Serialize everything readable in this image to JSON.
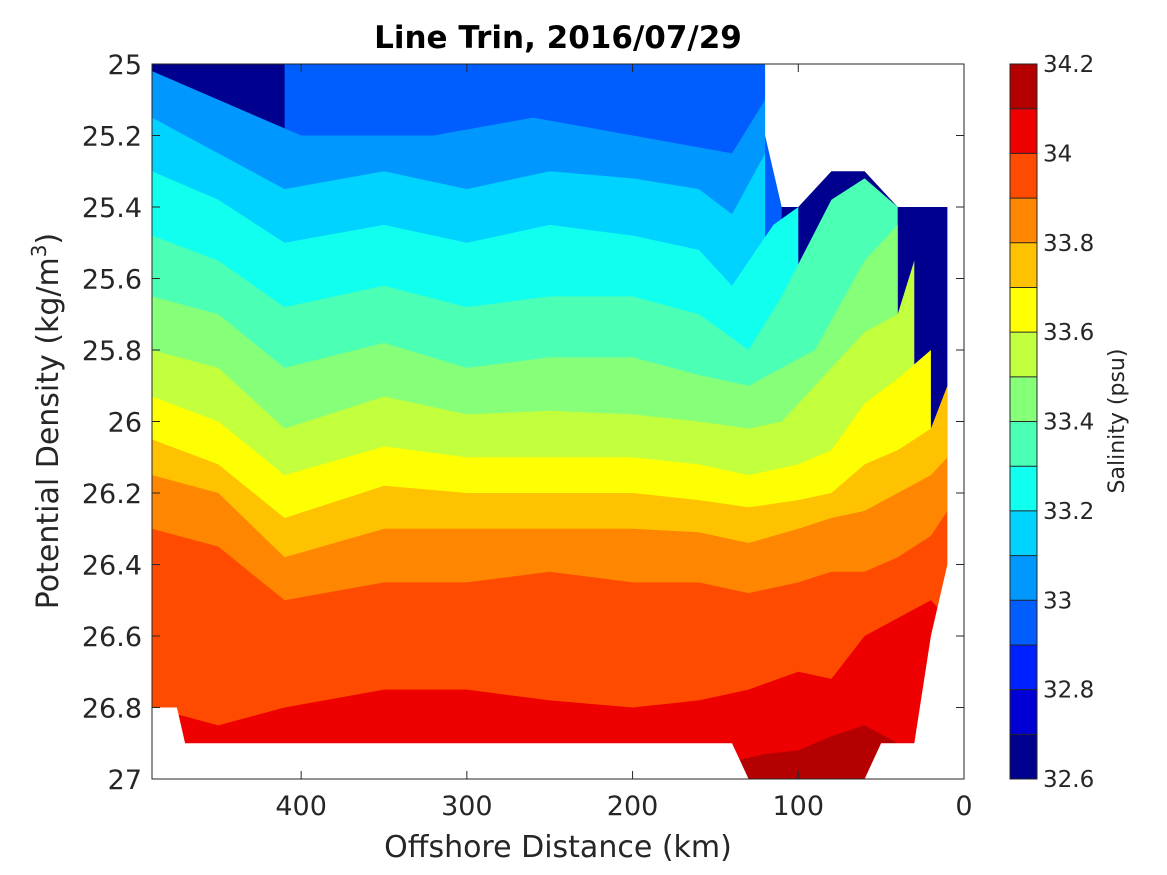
{
  "chart_data": {
    "type": "heatmap",
    "title": "Line Trin, 2016/07/29",
    "xlabel": "Offshore Distance (km)",
    "ylabel": "Potential Density (kg/m",
    "ylabel_sup": "3",
    "ylabel_end": ")",
    "colorbar_label": "Salinity (psu)",
    "xlim": [
      490,
      0
    ],
    "ylim": [
      25,
      27
    ],
    "x_ticks": [
      400,
      300,
      200,
      100,
      0
    ],
    "x_tick_labels": [
      "400",
      "300",
      "200",
      "100",
      "0"
    ],
    "y_ticks": [
      25,
      25.2,
      25.4,
      25.6,
      25.8,
      26,
      26.2,
      26.4,
      26.6,
      26.8,
      27
    ],
    "y_tick_labels": [
      "25",
      "25.2",
      "25.4",
      "25.6",
      "25.8",
      "26",
      "26.2",
      "26.4",
      "26.6",
      "26.8",
      "27"
    ],
    "colorbar_levels": [
      32.6,
      32.7,
      32.8,
      32.9,
      33.0,
      33.1,
      33.2,
      33.3,
      33.4,
      33.5,
      33.6,
      33.7,
      33.8,
      33.9,
      34.0,
      34.1,
      34.2
    ],
    "colorbar_tick_values": [
      32.6,
      32.8,
      33,
      33.2,
      33.4,
      33.6,
      33.8,
      34,
      34.2
    ],
    "colorbar_tick_labels": [
      "32.6",
      "32.8",
      "33",
      "33.2",
      "33.4",
      "33.6",
      "33.8",
      "34",
      "34.2"
    ],
    "level_colors": [
      "#00008f",
      "#0000d6",
      "#0021ff",
      "#005dff",
      "#0098ff",
      "#00d3ff",
      "#10ffef",
      "#4bffb4",
      "#86ff79",
      "#c2ff3d",
      "#fdff02",
      "#ffc200",
      "#ff8600",
      "#ff4b00",
      "#ef0000",
      "#b40000"
    ],
    "contour_boundaries": [
      {
        "level": 32.9,
        "x": [
          410,
          310,
          260,
          200,
          140,
          110
        ],
        "y": [
          25.0,
          25.0,
          25.0,
          25.0,
          25.0,
          25.0
        ]
      },
      {
        "level": 33.0,
        "x": [
          490,
          450,
          400,
          320,
          260,
          200,
          140,
          120
        ],
        "y": [
          25.02,
          25.1,
          25.2,
          25.2,
          25.15,
          25.2,
          25.25,
          25.1
        ]
      },
      {
        "level": 33.1,
        "x": [
          490,
          450,
          410,
          350,
          300,
          250,
          200,
          160,
          140,
          120
        ],
        "y": [
          25.15,
          25.25,
          25.35,
          25.3,
          25.35,
          25.3,
          25.32,
          25.35,
          25.42,
          25.25
        ]
      },
      {
        "level": 33.2,
        "x": [
          490,
          450,
          410,
          350,
          300,
          250,
          200,
          160,
          140,
          115,
          100
        ],
        "y": [
          25.3,
          25.38,
          25.5,
          25.45,
          25.5,
          25.45,
          25.48,
          25.52,
          25.62,
          25.45,
          25.4
        ]
      },
      {
        "level": 33.3,
        "x": [
          490,
          450,
          410,
          350,
          300,
          250,
          200,
          160,
          130,
          110,
          80,
          60,
          40
        ],
        "y": [
          25.48,
          25.55,
          25.68,
          25.62,
          25.68,
          25.65,
          25.65,
          25.7,
          25.8,
          25.65,
          25.38,
          25.32,
          25.4
        ]
      },
      {
        "level": 33.4,
        "x": [
          490,
          450,
          410,
          350,
          300,
          250,
          200,
          160,
          130,
          110,
          90,
          60,
          40
        ],
        "y": [
          25.65,
          25.7,
          25.85,
          25.78,
          25.85,
          25.82,
          25.82,
          25.87,
          25.9,
          25.85,
          25.8,
          25.55,
          25.45
        ]
      },
      {
        "level": 33.5,
        "x": [
          490,
          450,
          410,
          350,
          300,
          250,
          200,
          160,
          130,
          110,
          90,
          60,
          40,
          30
        ],
        "y": [
          25.8,
          25.85,
          26.02,
          25.93,
          25.98,
          25.97,
          25.98,
          26.0,
          26.02,
          26.0,
          25.9,
          25.75,
          25.7,
          25.55
        ]
      },
      {
        "level": 33.6,
        "x": [
          490,
          450,
          410,
          350,
          300,
          250,
          200,
          160,
          130,
          100,
          80,
          60,
          40,
          20
        ],
        "y": [
          25.93,
          26.0,
          26.15,
          26.07,
          26.1,
          26.1,
          26.1,
          26.12,
          26.15,
          26.12,
          26.08,
          25.95,
          25.88,
          25.8
        ]
      },
      {
        "level": 33.7,
        "x": [
          490,
          450,
          410,
          350,
          300,
          250,
          200,
          160,
          130,
          100,
          80,
          60,
          40,
          20,
          10
        ],
        "y": [
          26.05,
          26.12,
          26.27,
          26.18,
          26.2,
          26.2,
          26.2,
          26.22,
          26.24,
          26.22,
          26.2,
          26.12,
          26.08,
          26.02,
          25.9
        ]
      },
      {
        "level": 33.8,
        "x": [
          490,
          450,
          410,
          350,
          300,
          250,
          200,
          160,
          130,
          100,
          80,
          60,
          40,
          20,
          10
        ],
        "y": [
          26.15,
          26.2,
          26.38,
          26.3,
          26.3,
          26.3,
          26.3,
          26.31,
          26.34,
          26.3,
          26.27,
          26.25,
          26.2,
          26.15,
          26.1
        ]
      },
      {
        "level": 33.9,
        "x": [
          490,
          450,
          410,
          350,
          300,
          250,
          200,
          160,
          130,
          100,
          80,
          60,
          40,
          20,
          10
        ],
        "y": [
          26.3,
          26.35,
          26.5,
          26.45,
          26.45,
          26.42,
          26.45,
          26.45,
          26.48,
          26.45,
          26.42,
          26.42,
          26.38,
          26.32,
          26.25
        ]
      },
      {
        "level": 34.0,
        "x": [
          490,
          450,
          410,
          350,
          300,
          250,
          200,
          160,
          130,
          100,
          80,
          60,
          40,
          20,
          10
        ],
        "y": [
          26.8,
          26.85,
          26.8,
          26.75,
          26.75,
          26.78,
          26.8,
          26.78,
          26.75,
          26.7,
          26.72,
          26.6,
          26.55,
          26.5,
          26.55
        ]
      },
      {
        "level": 34.1,
        "x": [
          140,
          120,
          100,
          80,
          60,
          40
        ],
        "y": [
          26.95,
          26.93,
          26.92,
          26.88,
          26.85,
          26.9
        ]
      }
    ],
    "data_extent": {
      "x": [
        490,
        490,
        475,
        470,
        140,
        130,
        120,
        110,
        100,
        90,
        80,
        70,
        60,
        50,
        40,
        30,
        20,
        10,
        10,
        30,
        30,
        40,
        40,
        60,
        80,
        100,
        110,
        120,
        120,
        490
      ],
      "y": [
        25.0,
        26.8,
        26.8,
        26.9,
        26.9,
        27.0,
        27.0,
        27.0,
        27.0,
        27.0,
        27.0,
        27.0,
        27.0,
        26.9,
        26.9,
        26.9,
        26.6,
        26.4,
        25.4,
        25.4,
        25.4,
        25.4,
        25.4,
        25.3,
        25.3,
        25.4,
        25.4,
        25.2,
        25.0,
        25.0
      ]
    },
    "grid": false,
    "legend": "none",
    "colorbar_position": "right"
  }
}
